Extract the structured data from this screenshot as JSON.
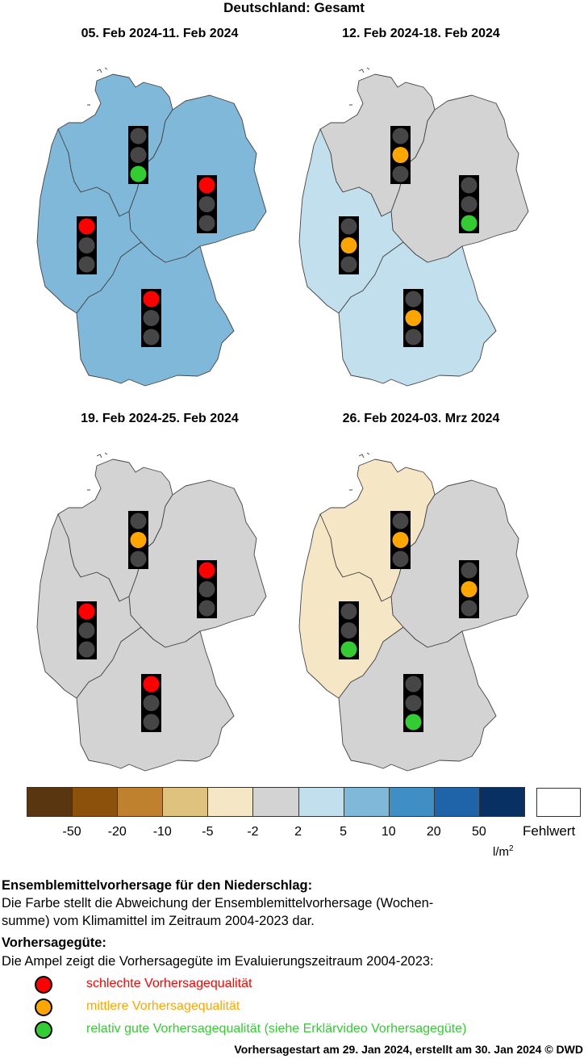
{
  "title": "Deutschland: Gesamt",
  "panels": [
    {
      "title": "05. Feb 2024-11. Feb 2024",
      "region_fill": {
        "north": "#7fb8d9",
        "east": "#7fb8d9",
        "west": "#7fb8d9",
        "south": "#7fb8d9"
      },
      "lights": {
        "north": "green",
        "east": "red",
        "west": "red",
        "south": "red"
      }
    },
    {
      "title": "12. Feb 2024-18. Feb 2024",
      "region_fill": {
        "north": "#d3d3d3",
        "east": "#d3d3d3",
        "west": "#c2dfee",
        "south": "#c2dfee"
      },
      "lights": {
        "north": "orange",
        "east": "green",
        "west": "orange",
        "south": "orange"
      }
    },
    {
      "title": "19. Feb 2024-25. Feb 2024",
      "region_fill": {
        "north": "#d3d3d3",
        "east": "#d3d3d3",
        "west": "#d3d3d3",
        "south": "#d3d3d3"
      },
      "lights": {
        "north": "orange",
        "east": "red",
        "west": "red",
        "south": "red"
      }
    },
    {
      "title": "26. Feb 2024-03. Mrz 2024",
      "region_fill": {
        "north": "#f5e6c6",
        "east": "#d3d3d3",
        "west": "#f5e6c6",
        "south": "#d3d3d3"
      },
      "lights": {
        "north": "orange",
        "east": "orange",
        "west": "green",
        "south": "green"
      }
    }
  ],
  "legend": {
    "colors": [
      "#5a3610",
      "#8c510a",
      "#bf812d",
      "#dfc27d",
      "#f5e6c6",
      "#d3d3d3",
      "#c2dfee",
      "#7fb8d9",
      "#3f8fc5",
      "#1f64a8",
      "#083063"
    ],
    "ticks": [
      "-50",
      "-20",
      "-10",
      "-5",
      "-2",
      "2",
      "5",
      "10",
      "20",
      "50"
    ],
    "missing_label": "Fehlwert",
    "unit": "l/m",
    "unit_sup": "2"
  },
  "explanation": {
    "heading1": "Ensemblemittelvorhersage für den Niederschlag:",
    "text1a": "Die Farbe stellt die Abweichung der Ensemblemittelvorhersage (Wochen-",
    "text1b": "summe) vom Klimamittel im Zeitraum 2004-2023 dar.",
    "heading2": "Vorhersagegüte:",
    "text2": "Die Ampel zeigt die Vorhersagegüte im Evaluierungszeitraum 2004-2023:",
    "quality": [
      {
        "color": "red",
        "hex": "#ff0000",
        "label": "schlechte Vorhersagequalität"
      },
      {
        "color": "orange",
        "hex": "#ffa500",
        "label": "mittlere Vorhersagequalität"
      },
      {
        "color": "green",
        "hex": "#33cc33",
        "label": "relativ gute Vorhersagequalität (siehe Erklärvideo Vorhersagegüte)"
      }
    ]
  },
  "footer": "Vorhersagestart am 29. Jan 2024, erstellt am 30. Jan 2024 © DWD",
  "chart_data": {
    "type": "heatmap",
    "title": "Deutschland: Gesamt",
    "regions": [
      "north",
      "east",
      "west",
      "south"
    ],
    "periods": [
      "05. Feb 2024-11. Feb 2024",
      "12. Feb 2024-18. Feb 2024",
      "19. Feb 2024-25. Feb 2024",
      "26. Feb 2024-03. Mrz 2024"
    ],
    "precip_anomaly_class": [
      {
        "north": "5 to 10",
        "east": "5 to 10",
        "west": "5 to 10",
        "south": "5 to 10"
      },
      {
        "north": "-2 to 2",
        "east": "-2 to 2",
        "west": "2 to 5",
        "south": "2 to 5"
      },
      {
        "north": "-2 to 2",
        "east": "-2 to 2",
        "west": "-2 to 2",
        "south": "-2 to 2"
      },
      {
        "north": "-5 to -2",
        "east": "-2 to 2",
        "west": "-5 to -2",
        "south": "-2 to 2"
      }
    ],
    "quality": [
      {
        "north": "green",
        "east": "red",
        "west": "red",
        "south": "red"
      },
      {
        "north": "orange",
        "east": "green",
        "west": "orange",
        "south": "orange"
      },
      {
        "north": "orange",
        "east": "red",
        "west": "red",
        "south": "red"
      },
      {
        "north": "orange",
        "east": "orange",
        "west": "green",
        "south": "green"
      }
    ],
    "unit": "l/m2"
  }
}
